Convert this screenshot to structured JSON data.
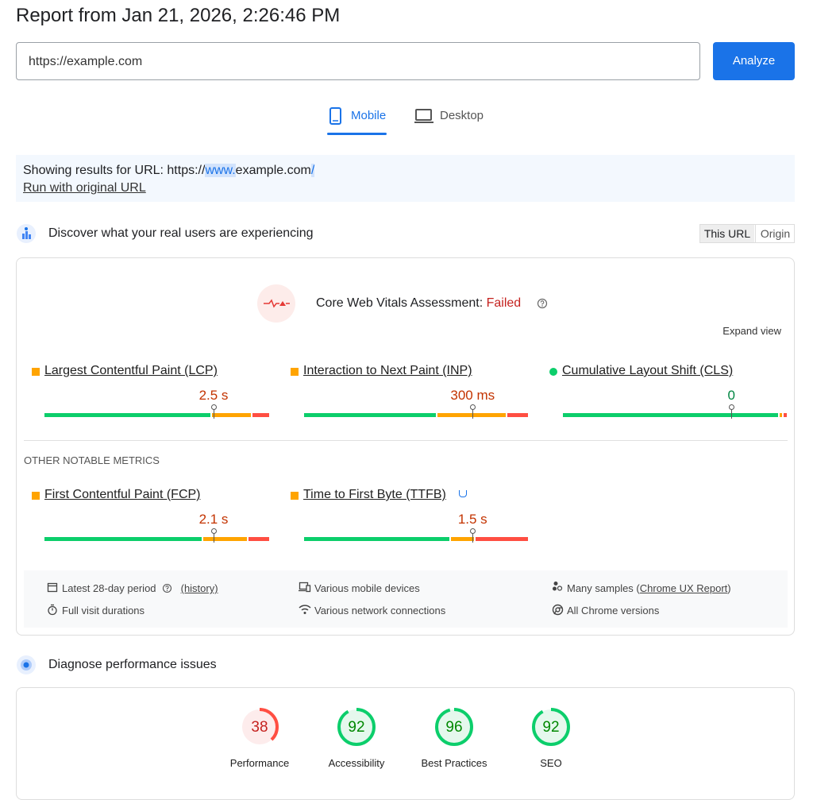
{
  "header": {
    "title": "Report from Jan 21, 2026, 2:26:46 PM",
    "url": "https://example.com",
    "analyze": "Analyze"
  },
  "tabs": [
    "Mobile",
    "Desktop"
  ],
  "notice": {
    "text": "Showing results for URL: https://",
    "highlight": "www.",
    "rest": "example.com",
    "end": "/",
    "link": "Run with original URL"
  },
  "field": {
    "title": "Discover what your real users are experiencing",
    "toggle": [
      "This URL",
      "Origin"
    ],
    "assessment_label": "Core Web Vitals Assessment:",
    "assessment_result": "Failed",
    "expand": "Expand view",
    "metrics": [
      {
        "name": "Largest Contentful Paint (LCP)",
        "value": "2.5 s",
        "status": "average",
        "distribution": [
          74,
          18,
          8
        ],
        "p75": 75
      },
      {
        "name": "Interaction to Next Paint (INP)",
        "value": "300 ms",
        "status": "average",
        "distribution": [
          59,
          31,
          10
        ],
        "p75": 75
      },
      {
        "name": "Cumulative Layout Shift (CLS)",
        "value": "0",
        "status": "good",
        "distribution": [
          96,
          2,
          2
        ],
        "p75": 75
      }
    ],
    "other_title": "OTHER NOTABLE METRICS",
    "other_metrics": [
      {
        "name": "First Contentful Paint (FCP)",
        "value": "2.1 s",
        "status": "average",
        "distribution": [
          70,
          20,
          10
        ],
        "p75": 75
      },
      {
        "name": "Time to First Byte (TTFB)",
        "value": "1.5 s",
        "status": "average",
        "distribution": [
          65,
          11,
          24
        ],
        "p75": 75
      }
    ],
    "footer": {
      "period": "Latest 28-day period",
      "history": "(history)",
      "devices": "Various mobile devices",
      "samples": "Many samples (",
      "samples_link": "Chrome UX Report",
      "samples_end": ")",
      "durations": "Full visit durations",
      "network": "Various network connections",
      "versions": "All Chrome versions"
    }
  },
  "lab": {
    "title": "Diagnose performance issues",
    "scores": [
      {
        "label": "Performance",
        "score": 38,
        "rating": "fail"
      },
      {
        "label": "Accessibility",
        "score": 92,
        "rating": "pass"
      },
      {
        "label": "Best Practices",
        "score": 96,
        "rating": "pass"
      },
      {
        "label": "SEO",
        "score": 92,
        "rating": "pass"
      }
    ]
  }
}
